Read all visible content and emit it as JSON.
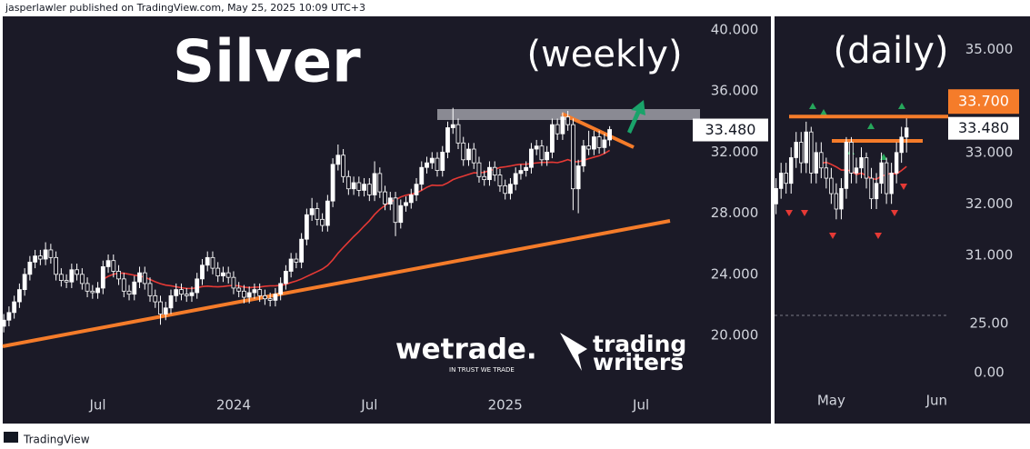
{
  "header": "jasperlawler published on TradingView.com, May 25, 2025 10:09 UTC+3",
  "footer": "TradingView",
  "logos": {
    "wetrade": "wetrade.",
    "tagline": "IN TRUST WE TRADE",
    "tw1": "trading",
    "tw2": "writers"
  },
  "chart_data": [
    {
      "type": "candlestick",
      "title": "Silver",
      "subtitle": "(weekly)",
      "up_color": "#ffffff",
      "down_color": "#161521",
      "ma_color": "#e53935",
      "categories": [
        null,
        null,
        null,
        null,
        null,
        null,
        null,
        null,
        null,
        null,
        null,
        null,
        null,
        null,
        null,
        null,
        null,
        null,
        null,
        null,
        null,
        null,
        null,
        null,
        null,
        null,
        null,
        null,
        null,
        null,
        null,
        null,
        null,
        null,
        null,
        null,
        null,
        null,
        null,
        null,
        null,
        null,
        null,
        null,
        null,
        null,
        null,
        null,
        null,
        null,
        null,
        null,
        null,
        null,
        null,
        null,
        null,
        null,
        null,
        null,
        null,
        null,
        null,
        null,
        null,
        null,
        null,
        null,
        null,
        null,
        null,
        null,
        null,
        null,
        null,
        null,
        null,
        null,
        null,
        null,
        null,
        null,
        null,
        null,
        null,
        null,
        null,
        null,
        null,
        null,
        null,
        null,
        null,
        null,
        null,
        null,
        null,
        null,
        null,
        null,
        null,
        null,
        null,
        null,
        null,
        null,
        null,
        null,
        null,
        null,
        null,
        null,
        null,
        null,
        null,
        null,
        null
      ],
      "values": [
        [
          20.6,
          21.4,
          20.2,
          21.0
        ],
        [
          21.0,
          21.9,
          20.6,
          21.5
        ],
        [
          21.5,
          22.6,
          21.1,
          22.2
        ],
        [
          22.2,
          23.4,
          21.8,
          23.0
        ],
        [
          23.0,
          24.4,
          22.6,
          24.0
        ],
        [
          24.0,
          25.2,
          23.6,
          24.8
        ],
        [
          24.8,
          25.6,
          24.4,
          25.2
        ],
        [
          25.2,
          25.6,
          24.6,
          25.0
        ],
        [
          25.0,
          26.1,
          24.6,
          25.6
        ],
        [
          25.6,
          26.0,
          24.7,
          25.1
        ],
        [
          25.1,
          25.5,
          23.6,
          24.0
        ],
        [
          24.0,
          24.4,
          23.2,
          23.6
        ],
        [
          23.6,
          24.0,
          23.1,
          23.5
        ],
        [
          23.5,
          24.7,
          23.1,
          24.3
        ],
        [
          24.3,
          24.7,
          23.6,
          24.0
        ],
        [
          24.0,
          24.4,
          23.0,
          23.4
        ],
        [
          23.4,
          23.8,
          22.5,
          22.9
        ],
        [
          22.9,
          23.3,
          22.4,
          22.8
        ],
        [
          22.8,
          23.5,
          22.4,
          23.1
        ],
        [
          23.1,
          24.9,
          22.7,
          24.5
        ],
        [
          24.5,
          25.3,
          24.1,
          24.9
        ],
        [
          24.9,
          25.3,
          23.8,
          24.2
        ],
        [
          24.2,
          24.6,
          23.3,
          23.7
        ],
        [
          23.7,
          24.1,
          22.5,
          22.9
        ],
        [
          22.9,
          23.3,
          22.3,
          22.7
        ],
        [
          22.7,
          23.9,
          22.3,
          23.5
        ],
        [
          23.5,
          24.5,
          23.1,
          24.1
        ],
        [
          24.1,
          24.5,
          23.0,
          23.4
        ],
        [
          23.4,
          23.8,
          22.2,
          22.6
        ],
        [
          22.6,
          23.0,
          21.8,
          22.2
        ],
        [
          22.2,
          22.6,
          20.7,
          21.4
        ],
        [
          21.4,
          22.2,
          21.0,
          21.8
        ],
        [
          21.8,
          23.0,
          21.4,
          22.6
        ],
        [
          22.6,
          23.4,
          22.2,
          23.0
        ],
        [
          23.0,
          23.4,
          22.3,
          22.7
        ],
        [
          22.7,
          23.1,
          22.2,
          22.6
        ],
        [
          22.6,
          23.2,
          22.2,
          22.8
        ],
        [
          22.8,
          24.1,
          22.4,
          23.7
        ],
        [
          23.7,
          25.0,
          23.3,
          24.6
        ],
        [
          24.6,
          25.5,
          24.2,
          25.1
        ],
        [
          25.1,
          25.5,
          24.0,
          24.4
        ],
        [
          24.4,
          24.8,
          23.5,
          23.9
        ],
        [
          23.9,
          24.5,
          23.5,
          24.1
        ],
        [
          24.1,
          24.5,
          23.4,
          23.8
        ],
        [
          23.8,
          24.2,
          22.7,
          23.1
        ],
        [
          23.1,
          23.5,
          22.5,
          22.9
        ],
        [
          22.9,
          23.3,
          22.1,
          22.5
        ],
        [
          22.5,
          23.2,
          22.1,
          22.8
        ],
        [
          22.8,
          23.4,
          22.4,
          23.0
        ],
        [
          23.0,
          23.4,
          22.2,
          22.6
        ],
        [
          22.6,
          23.0,
          22.0,
          22.4
        ],
        [
          22.4,
          22.8,
          21.9,
          22.3
        ],
        [
          22.3,
          23.1,
          21.9,
          22.7
        ],
        [
          22.7,
          23.8,
          22.3,
          23.4
        ],
        [
          23.4,
          24.6,
          23.0,
          24.2
        ],
        [
          24.2,
          25.4,
          23.8,
          25.0
        ],
        [
          25.0,
          25.4,
          24.4,
          24.8
        ],
        [
          24.8,
          26.7,
          24.4,
          26.3
        ],
        [
          26.3,
          28.3,
          25.9,
          27.9
        ],
        [
          27.9,
          29.0,
          27.5,
          28.3
        ],
        [
          28.3,
          28.7,
          27.2,
          27.6
        ],
        [
          27.6,
          28.0,
          26.8,
          27.2
        ],
        [
          27.2,
          29.2,
          26.8,
          28.8
        ],
        [
          28.8,
          31.6,
          28.4,
          31.2
        ],
        [
          31.2,
          32.5,
          30.8,
          31.8
        ],
        [
          31.8,
          32.2,
          30.0,
          30.4
        ],
        [
          30.4,
          30.8,
          29.2,
          29.6
        ],
        [
          29.6,
          30.4,
          29.2,
          30.0
        ],
        [
          30.0,
          30.4,
          29.1,
          29.5
        ],
        [
          29.5,
          30.3,
          29.1,
          29.9
        ],
        [
          29.9,
          30.3,
          28.8,
          29.2
        ],
        [
          29.2,
          31.4,
          28.8,
          30.6
        ],
        [
          30.6,
          31.0,
          29.0,
          29.4
        ],
        [
          29.4,
          29.8,
          28.2,
          28.6
        ],
        [
          28.6,
          29.4,
          28.2,
          29.0
        ],
        [
          29.0,
          29.4,
          26.5,
          27.4
        ],
        [
          27.4,
          28.9,
          27.0,
          28.5
        ],
        [
          28.5,
          29.1,
          28.1,
          28.7
        ],
        [
          28.7,
          29.6,
          28.3,
          29.2
        ],
        [
          29.2,
          30.3,
          28.8,
          29.9
        ],
        [
          29.9,
          31.4,
          29.5,
          31.0
        ],
        [
          31.0,
          31.7,
          30.6,
          31.3
        ],
        [
          31.3,
          32.0,
          30.9,
          31.6
        ],
        [
          31.6,
          32.0,
          30.4,
          30.8
        ],
        [
          30.8,
          32.4,
          30.4,
          32.0
        ],
        [
          32.0,
          34.0,
          31.6,
          33.6
        ],
        [
          33.6,
          34.9,
          33.2,
          33.8
        ],
        [
          33.8,
          34.2,
          32.2,
          32.6
        ],
        [
          32.6,
          33.0,
          31.1,
          31.5
        ],
        [
          31.5,
          32.6,
          31.1,
          32.2
        ],
        [
          32.2,
          32.6,
          30.9,
          31.3
        ],
        [
          31.3,
          31.7,
          30.0,
          30.4
        ],
        [
          30.4,
          30.8,
          29.8,
          30.2
        ],
        [
          30.2,
          31.4,
          29.8,
          31.0
        ],
        [
          31.0,
          31.4,
          30.1,
          30.5
        ],
        [
          30.5,
          30.9,
          29.4,
          29.8
        ],
        [
          29.8,
          30.2,
          28.9,
          29.3
        ],
        [
          29.3,
          30.3,
          28.9,
          29.9
        ],
        [
          29.9,
          31.0,
          29.5,
          30.6
        ],
        [
          30.6,
          31.2,
          30.2,
          30.8
        ],
        [
          30.8,
          31.4,
          30.4,
          31.0
        ],
        [
          31.0,
          32.6,
          30.6,
          32.2
        ],
        [
          32.2,
          32.8,
          31.8,
          32.4
        ],
        [
          32.4,
          32.8,
          31.1,
          31.5
        ],
        [
          31.5,
          32.4,
          31.1,
          32.0
        ],
        [
          32.0,
          34.2,
          31.6,
          33.8
        ],
        [
          33.8,
          34.2,
          32.8,
          33.2
        ],
        [
          33.2,
          34.6,
          32.8,
          34.3
        ],
        [
          34.3,
          34.7,
          33.4,
          33.8
        ],
        [
          33.8,
          34.2,
          28.2,
          29.6
        ],
        [
          29.6,
          31.5,
          28.0,
          31.1
        ],
        [
          31.1,
          32.8,
          30.7,
          32.4
        ],
        [
          32.4,
          33.4,
          31.8,
          32.2
        ],
        [
          32.2,
          33.4,
          31.8,
          33.0
        ],
        [
          33.0,
          33.4,
          31.9,
          32.3
        ],
        [
          32.3,
          33.2,
          31.9,
          32.8
        ],
        [
          32.8,
          33.7,
          32.4,
          33.48
        ]
      ],
      "xlim": [
        -0.2,
        133.3
      ],
      "xticks": [
        {
          "value": 18,
          "label": "Jul"
        },
        {
          "value": 44,
          "label": "2024"
        },
        {
          "value": 70,
          "label": "Jul"
        },
        {
          "value": 96,
          "label": "2025"
        },
        {
          "value": 122,
          "label": "Jul"
        }
      ],
      "ylim": [
        16.67,
        40.89
      ],
      "yticks": [
        {
          "value": 20,
          "label": "20.000"
        },
        {
          "value": 24,
          "label": "24.000"
        },
        {
          "value": 28,
          "label": "28.000"
        },
        {
          "value": 32,
          "label": "32.000"
        },
        {
          "value": 36,
          "label": "36.000"
        },
        {
          "value": 40,
          "label": "40.000"
        }
      ],
      "last_price": {
        "value": 33.48,
        "label": "33.480"
      }
    },
    {
      "type": "candlestick",
      "subtitle": "(daily)",
      "up_color": "#ffffff",
      "down_color": "#161521",
      "ma_color": "#e53935",
      "categories": [
        null,
        null,
        null,
        null,
        null,
        null,
        null,
        null,
        null,
        null,
        null,
        null,
        null,
        null,
        null,
        null,
        null,
        null,
        null,
        null,
        null,
        null,
        null,
        null,
        null,
        null,
        null
      ],
      "values": [
        [
          32.0,
          32.5,
          31.8,
          32.3
        ],
        [
          32.3,
          32.8,
          32.1,
          32.6
        ],
        [
          32.6,
          32.8,
          32.2,
          32.4
        ],
        [
          32.4,
          33.1,
          32.2,
          32.9
        ],
        [
          32.9,
          33.4,
          32.7,
          33.2
        ],
        [
          33.2,
          33.4,
          32.6,
          32.8
        ],
        [
          32.8,
          33.6,
          32.6,
          33.4
        ],
        [
          33.4,
          33.5,
          32.4,
          32.6
        ],
        [
          32.6,
          33.2,
          32.4,
          33.0
        ],
        [
          33.0,
          33.2,
          32.5,
          32.7
        ],
        [
          32.7,
          32.9,
          32.3,
          32.5
        ],
        [
          32.5,
          32.7,
          32.0,
          32.2
        ],
        [
          32.2,
          32.4,
          31.7,
          31.9
        ],
        [
          31.9,
          32.5,
          31.7,
          32.3
        ],
        [
          32.3,
          33.3,
          32.1,
          33.2
        ],
        [
          33.2,
          33.3,
          32.4,
          32.6
        ],
        [
          32.6,
          32.9,
          32.4,
          32.7
        ],
        [
          32.7,
          33.1,
          32.5,
          32.9
        ],
        [
          32.9,
          33.0,
          32.3,
          32.5
        ],
        [
          32.5,
          32.7,
          31.9,
          32.1
        ],
        [
          32.1,
          32.6,
          31.9,
          32.4
        ],
        [
          32.4,
          33.0,
          32.2,
          32.8
        ],
        [
          32.8,
          32.9,
          32.0,
          32.2
        ],
        [
          32.2,
          32.8,
          32.0,
          32.6
        ],
        [
          32.6,
          33.2,
          32.4,
          33.0
        ],
        [
          33.0,
          33.5,
          32.8,
          33.3
        ],
        [
          33.3,
          33.7,
          33.0,
          33.48
        ]
      ],
      "xlim": [
        -0.3,
        34.3
      ],
      "xticks": [
        {
          "value": 11,
          "label": "May"
        },
        {
          "value": 32,
          "label": "Jun"
        }
      ],
      "ylim": [
        29.83,
        35.65
      ],
      "yticks": [
        {
          "value": 31,
          "label": "31.000"
        },
        {
          "value": 32,
          "label": "32.000"
        },
        {
          "value": 33,
          "label": "33.000"
        },
        {
          "value": 35,
          "label": "35.000"
        }
      ],
      "ylim_lower": [
        -6.94,
        29.17
      ],
      "yticks_lower": [
        {
          "value": 0,
          "label": "0.00"
        },
        {
          "value": 25,
          "label": "25.00"
        }
      ],
      "level": {
        "value": 33.7,
        "label": "33.700",
        "color": "#f57c2a"
      },
      "last_price": {
        "value": 33.48,
        "label": "33.480"
      }
    }
  ]
}
